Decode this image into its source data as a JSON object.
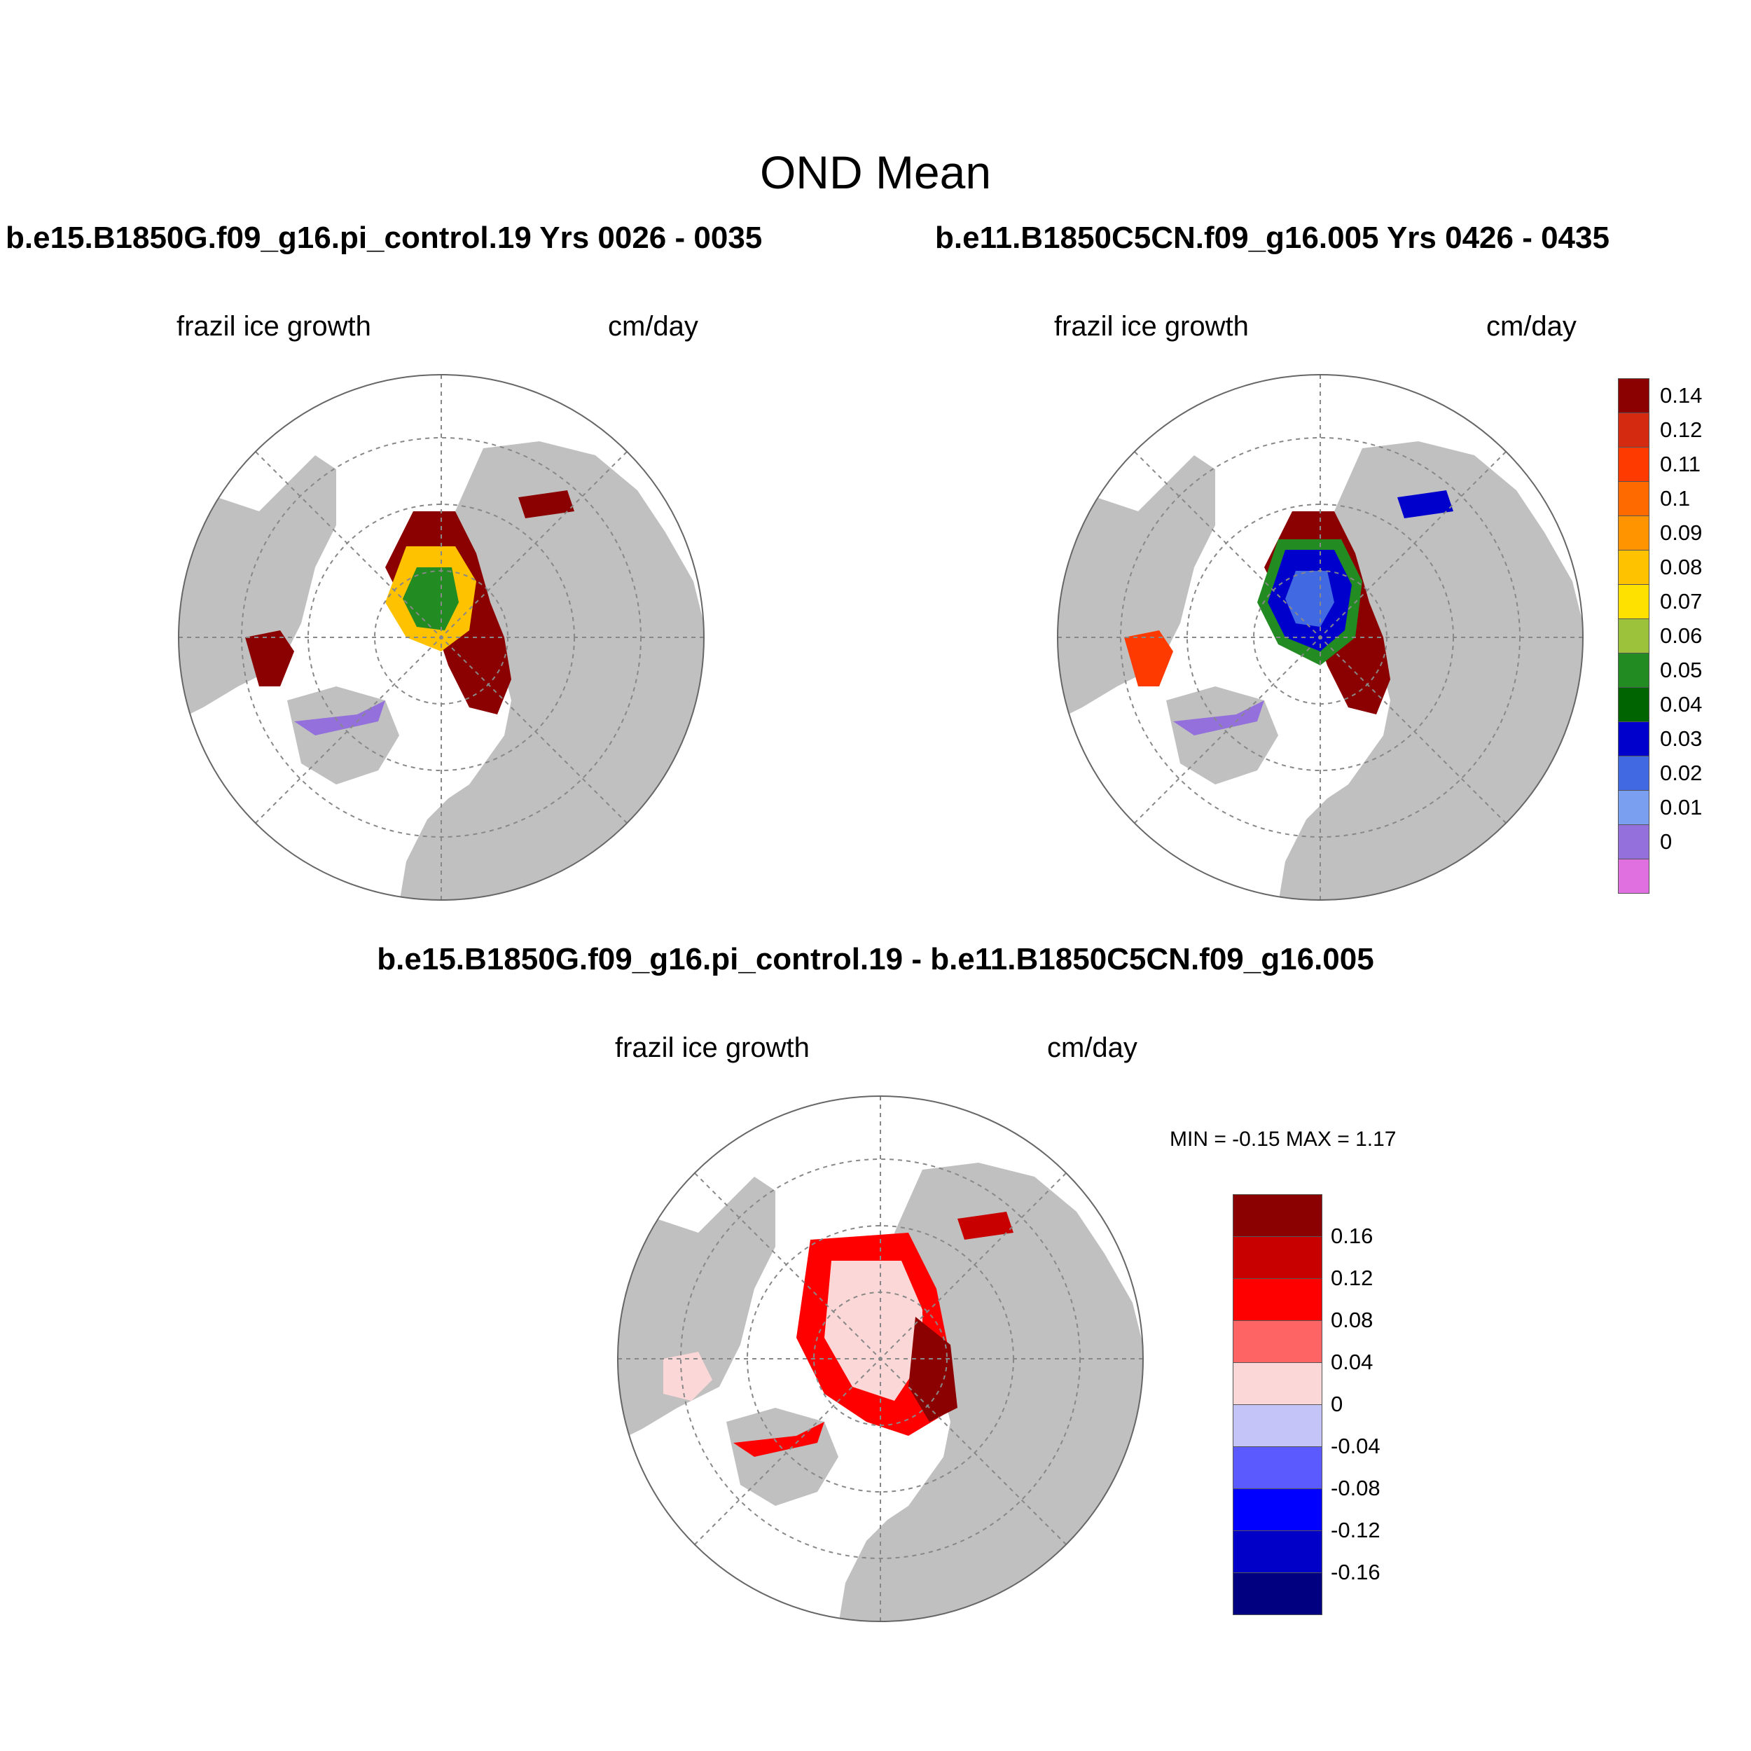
{
  "title": "OND Mean",
  "panels": [
    {
      "run": "b.e15.B1850G.f09_g16.pi_control.19  Yrs 0026 - 0035",
      "variable": "frazil ice growth",
      "units": "cm/day"
    },
    {
      "run": "b.e11.B1850C5CN.f09_g16.005  Yrs 0426 - 0435",
      "variable": "frazil ice growth",
      "units": "cm/day"
    },
    {
      "run": "b.e15.B1850G.f09_g16.pi_control.19 - b.e11.B1850C5CN.f09_g16.005",
      "variable": "frazil ice growth",
      "units": "cm/day",
      "min_max": "MIN =  -0.15 MAX =   1.17"
    }
  ],
  "colorbar_main": {
    "labels": [
      "0.14",
      "0.12",
      "0.11",
      "0.1",
      "0.09",
      "0.08",
      "0.07",
      "0.06",
      "0.05",
      "0.04",
      "0.03",
      "0.02",
      "0.01",
      "0"
    ],
    "colors": [
      "#8b0000",
      "#d42a10",
      "#ff3a00",
      "#ff6a00",
      "#ff9400",
      "#ffc200",
      "#ffe100",
      "#9bc23a",
      "#228b22",
      "#006400",
      "#0000cd",
      "#4169e1",
      "#7b9ff0",
      "#9370db",
      "#e070e0"
    ]
  },
  "colorbar_diff": {
    "labels": [
      "0.16",
      "0.12",
      "0.08",
      "0.04",
      "0",
      "-0.04",
      "-0.08",
      "-0.12",
      "-0.16"
    ],
    "colors": [
      "#8b0000",
      "#c80000",
      "#ff0000",
      "#ff6464",
      "#fcd7d7",
      "#c4c4f8",
      "#5a5aff",
      "#0000ff",
      "#0000c8",
      "#000080"
    ]
  },
  "map_colors": {
    "land": "#c0c0c0",
    "ocean": "#ffffff",
    "grid": "#888888"
  }
}
